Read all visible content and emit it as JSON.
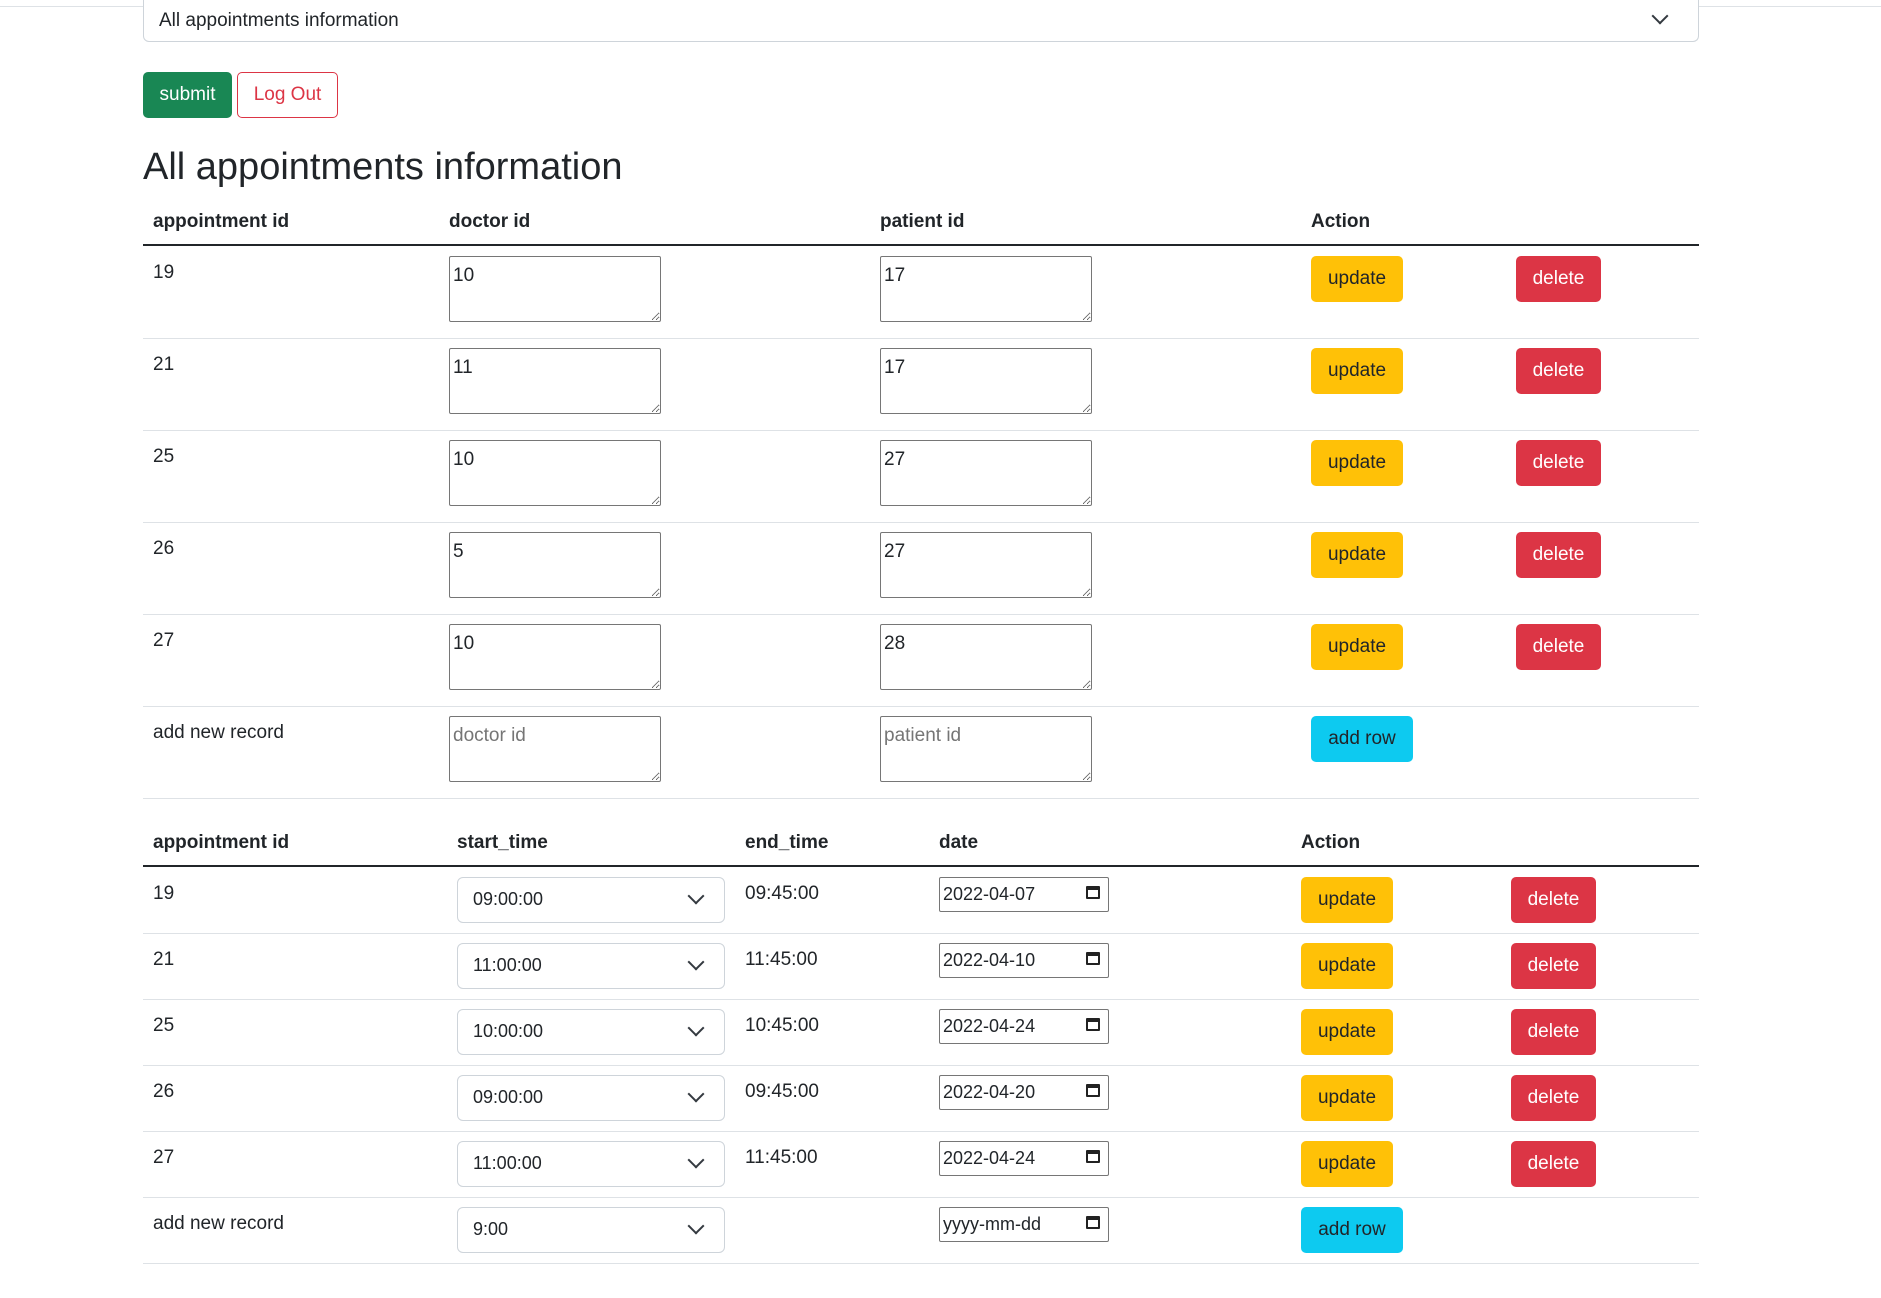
{
  "top_select": {
    "value": "All appointments information"
  },
  "buttons": {
    "submit": "submit",
    "logout": "Log Out"
  },
  "heading": "All appointments information",
  "table1": {
    "headers": {
      "appointment_id": "appointment id",
      "doctor_id": "doctor id",
      "patient_id": "patient id",
      "action": "Action"
    },
    "rows": [
      {
        "appointment_id": "19",
        "doctor_id": "10",
        "patient_id": "17"
      },
      {
        "appointment_id": "21",
        "doctor_id": "11",
        "patient_id": "17"
      },
      {
        "appointment_id": "25",
        "doctor_id": "10",
        "patient_id": "27"
      },
      {
        "appointment_id": "26",
        "doctor_id": "5",
        "patient_id": "27"
      },
      {
        "appointment_id": "27",
        "doctor_id": "10",
        "patient_id": "28"
      }
    ],
    "new_record": {
      "label": "add new record",
      "doctor_placeholder": "doctor id",
      "patient_placeholder": "patient id",
      "add_label": "add row"
    },
    "update_label": "update",
    "delete_label": "delete"
  },
  "table2": {
    "headers": {
      "appointment_id": "appointment id",
      "start_time": "start_time",
      "end_time": "end_time",
      "date": "date",
      "action": "Action"
    },
    "rows": [
      {
        "appointment_id": "19",
        "start_time": "09:00:00",
        "end_time": "09:45:00",
        "date": "2022-04-07"
      },
      {
        "appointment_id": "21",
        "start_time": "11:00:00",
        "end_time": "11:45:00",
        "date": "2022-04-10"
      },
      {
        "appointment_id": "25",
        "start_time": "10:00:00",
        "end_time": "10:45:00",
        "date": "2022-04-24"
      },
      {
        "appointment_id": "26",
        "start_time": "09:00:00",
        "end_time": "09:45:00",
        "date": "2022-04-20"
      },
      {
        "appointment_id": "27",
        "start_time": "11:00:00",
        "end_time": "11:45:00",
        "date": "2022-04-24"
      }
    ],
    "new_record": {
      "label": "add new record",
      "start_time": "9:00",
      "date_placeholder": "yyyy-mm-dd",
      "add_label": "add row"
    },
    "update_label": "update",
    "delete_label": "delete"
  },
  "colors": {
    "submit": "#198754",
    "logout": "#dc3545",
    "update": "#ffc107",
    "delete": "#dc3545",
    "add": "#0dcaf0"
  },
  "icons": {
    "select_arrow": "chevron-down-icon",
    "date_picker": "calendar-icon"
  }
}
